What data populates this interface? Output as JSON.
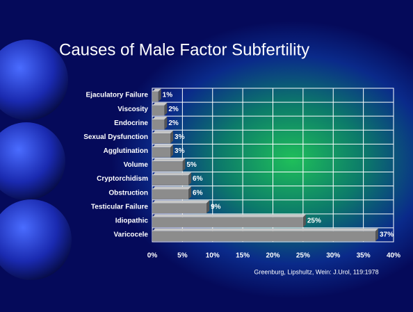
{
  "chart_data": {
    "type": "bar",
    "orientation": "horizontal",
    "title": "Causes of Male Factor Subfertility",
    "annotation": "Greenburg, Lipshultz, Wein: J.Urol, 119:1978",
    "categories": [
      "Ejaculatory Failure",
      "Viscosity",
      "Endocrine",
      "Sexual Dysfunction",
      "Agglutination",
      "Volume",
      "Cryptorchidism",
      "Obstruction",
      "Testicular Failure",
      "Idiopathic",
      "Varicocele"
    ],
    "values": [
      1,
      2,
      2,
      3,
      3,
      5,
      6,
      6,
      9,
      25,
      37
    ],
    "value_labels": [
      "1%",
      "2%",
      "2%",
      "3%",
      "3%",
      "5%",
      "6%",
      "6%",
      "9%",
      "25%",
      "37%"
    ],
    "color": "#8c8c8c",
    "xlim": [
      0,
      40
    ],
    "xticks": [
      {
        "value": 0,
        "label": "0%"
      },
      {
        "value": 5,
        "label": "5%"
      },
      {
        "value": 10,
        "label": "10%"
      },
      {
        "value": 15,
        "label": "15%"
      },
      {
        "value": 20,
        "label": "20%"
      },
      {
        "value": 25,
        "label": "25%"
      },
      {
        "value": 30,
        "label": "30%"
      },
      {
        "value": 35,
        "label": "35%"
      },
      {
        "value": 40,
        "label": "40%"
      }
    ],
    "grid": true
  }
}
